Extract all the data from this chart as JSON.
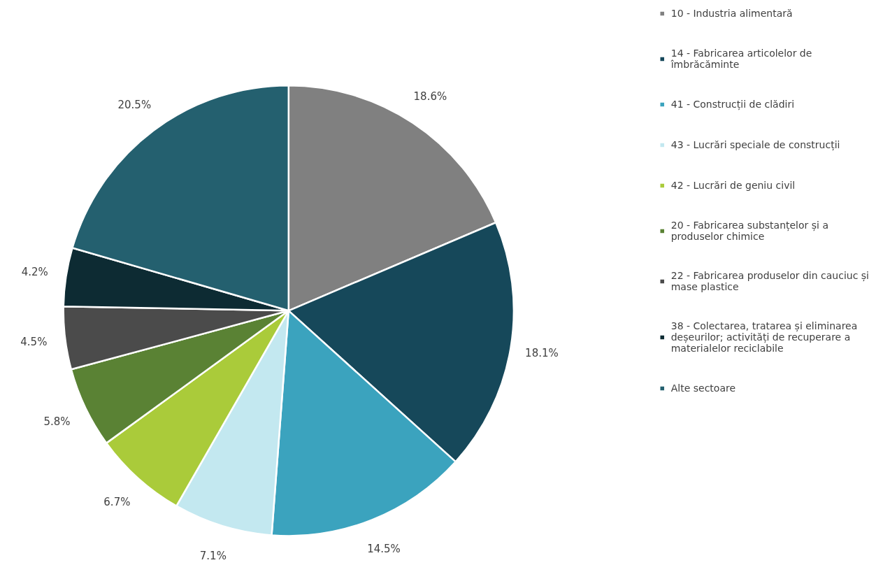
{
  "chart_data": {
    "type": "pie",
    "categories": [
      "10 - Industria alimentară",
      "14 - Fabricarea articolelor de îmbrăcăminte",
      "41 - Construcții de clădiri",
      "43 - Lucrări speciale de construcții",
      "42 - Lucrări de geniu civil",
      "20 - Fabricarea substanțelor și a produselor chimice",
      "22 - Fabricarea produselor din cauciuc și mase plastice",
      "38 - Colectarea, tratarea și eliminarea deșeurilor; activități de recuperare a materialelor reciclabile",
      "Alte sectoare"
    ],
    "values": [
      18.6,
      18.1,
      14.5,
      7.1,
      6.7,
      5.8,
      4.5,
      4.2,
      20.5
    ],
    "value_labels": [
      "18.6%",
      "18.1%",
      "14.5%",
      "7.1%",
      "6.7%",
      "5.8%",
      "4.5%",
      "4.2%",
      "20.5%"
    ],
    "colors": [
      "#808080",
      "#16485a",
      "#3ba3be",
      "#c3e8f0",
      "#aacb3a",
      "#5a8234",
      "#4b4b4b",
      "#0d2b33",
      "#24606f"
    ],
    "legend": "right"
  }
}
